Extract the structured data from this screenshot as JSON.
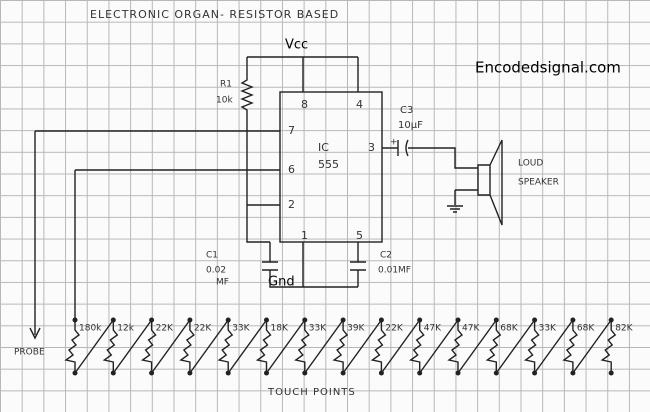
{
  "title": "ELECTRONIC ORGAN- RESISTOR BASED",
  "watermark": "Encodedsignal.com",
  "supply": "Vcc",
  "ground": "Gnd",
  "ic": {
    "name": "IC",
    "number": "555",
    "pins": [
      "8",
      "4",
      "7",
      "3",
      "6",
      "2",
      "1",
      "5"
    ]
  },
  "r1": {
    "name": "R1",
    "value": "10k"
  },
  "c1": {
    "name": "C1",
    "value": "0.02",
    "unit": "MF"
  },
  "c2": {
    "name": "C2",
    "value": "0.01MF"
  },
  "c3": {
    "name": "C3",
    "value": "10µF",
    "polarity": "+"
  },
  "speaker": {
    "line1": "LOUD",
    "line2": "SPEAKER"
  },
  "probe": "PROBE",
  "touch_points": {
    "label": "TOUCH POINTS",
    "resistors": [
      "180k",
      "12k",
      "22K",
      "22K",
      "33K",
      "18K",
      "33K",
      "39K",
      "22K",
      "47K",
      "47K",
      "68K",
      "33K",
      "68K",
      "82K"
    ]
  }
}
